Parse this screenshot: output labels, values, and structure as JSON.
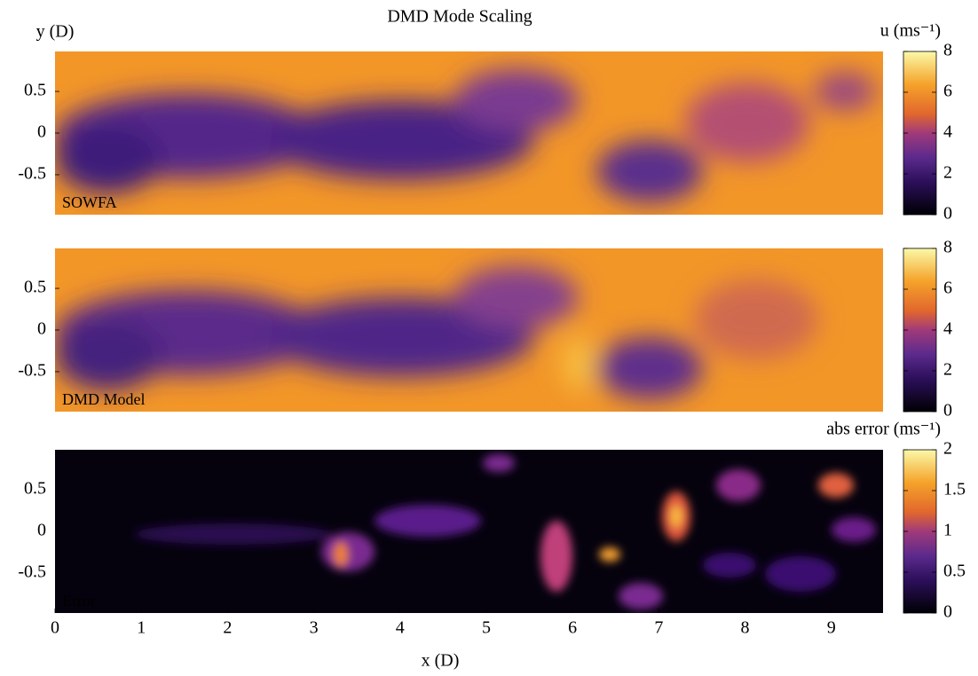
{
  "chart_data": [
    {
      "type": "heatmap",
      "title": "DMD Mode Scaling",
      "ylabel": "y (D)",
      "label": "SOWFA",
      "xlim": [
        0,
        9.6
      ],
      "ylim": [
        -0.98,
        0.98
      ],
      "yticks": [
        0.5,
        0,
        -0.5
      ],
      "colorbar": {
        "label": "u (ms⁻¹)",
        "lim": [
          0,
          8
        ],
        "ticks": [
          0,
          2,
          4,
          6,
          8
        ]
      }
    },
    {
      "type": "heatmap",
      "label": "DMD Model",
      "xlim": [
        0,
        9.6
      ],
      "ylim": [
        -0.98,
        0.98
      ],
      "yticks": [
        0.5,
        0,
        -0.5
      ],
      "colorbar": {
        "lim": [
          0,
          8
        ],
        "ticks": [
          0,
          2,
          4,
          6,
          8
        ]
      }
    },
    {
      "type": "heatmap",
      "label": "Error",
      "xlabel": "x (D)",
      "xlim": [
        0,
        9.6
      ],
      "ylim": [
        -0.98,
        0.98
      ],
      "yticks": [
        0.5,
        0,
        -0.5
      ],
      "xticks": [
        0,
        1,
        2,
        3,
        4,
        5,
        6,
        7,
        8,
        9
      ],
      "colorbar": {
        "label": "abs error (ms⁻¹)",
        "lim": [
          0,
          2
        ],
        "ticks": [
          0,
          0.5,
          1,
          1.5,
          2
        ]
      }
    }
  ]
}
